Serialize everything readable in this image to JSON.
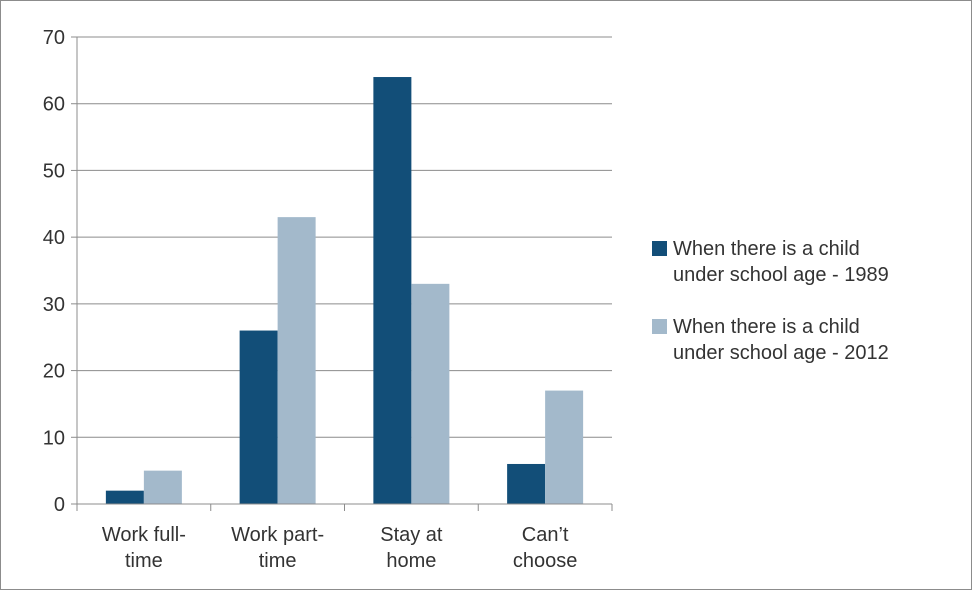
{
  "chart_data": {
    "type": "bar",
    "title": "",
    "xlabel": "",
    "ylabel": "",
    "categories": [
      [
        "Work full-",
        "time"
      ],
      [
        "Work part-",
        "time"
      ],
      [
        "Stay at",
        "home"
      ],
      [
        "Can’t",
        "choose"
      ]
    ],
    "series": [
      {
        "name": [
          "When there is a child",
          "under school age - 1989"
        ],
        "color": "#124e78",
        "values": [
          2,
          26,
          64,
          6
        ]
      },
      {
        "name": [
          "When there is a child",
          "under school age - 2012"
        ],
        "color": "#a3b9cb",
        "values": [
          5,
          43,
          33,
          17
        ]
      }
    ],
    "ylim": [
      0,
      70
    ],
    "yticks": [
      0,
      10,
      20,
      30,
      40,
      50,
      60,
      70
    ],
    "grid": true,
    "legend_position": "right"
  }
}
